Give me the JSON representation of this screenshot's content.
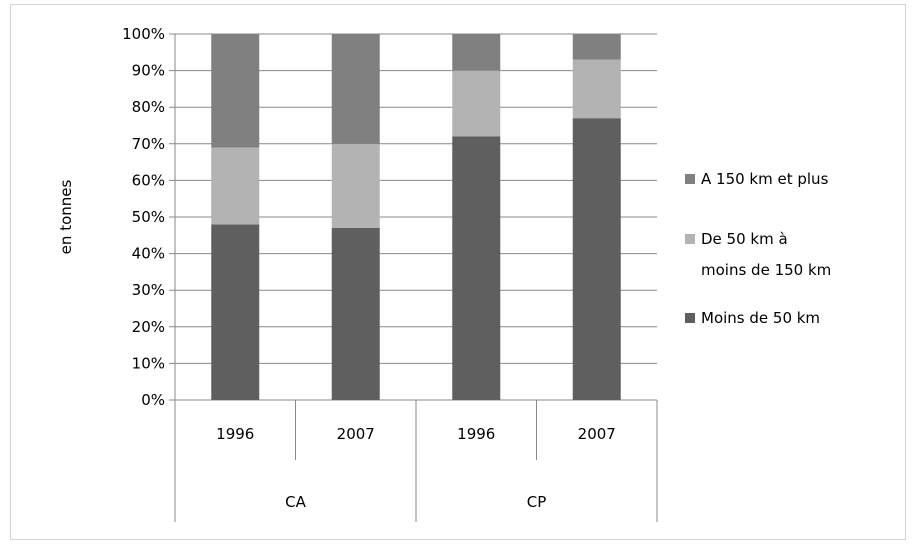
{
  "chart_data": {
    "type": "bar",
    "stacked": true,
    "title": "",
    "ylabel": "en tonnes",
    "xlabel": "",
    "ylim": [
      0,
      100
    ],
    "y_tick_labels": [
      "0%",
      "10%",
      "20%",
      "30%",
      "40%",
      "50%",
      "60%",
      "70%",
      "80%",
      "90%",
      "100%"
    ],
    "categories": [
      "1996",
      "2007",
      "1996",
      "2007"
    ],
    "groups": [
      {
        "label": "CA",
        "categories": [
          "1996",
          "2007"
        ]
      },
      {
        "label": "CP",
        "categories": [
          "1996",
          "2007"
        ]
      }
    ],
    "series": [
      {
        "name": "Moins de 50 km",
        "color": "#5f5f5f",
        "values": [
          48,
          47,
          72,
          77
        ]
      },
      {
        "name": "De 50 km à moins de 150 km",
        "color": "#b3b3b3",
        "values": [
          21,
          23,
          18,
          16
        ]
      },
      {
        "name": "A 150 km et plus",
        "color": "#808080",
        "values": [
          31,
          30,
          10,
          7
        ]
      }
    ],
    "legend": {
      "position": "right",
      "entries": [
        {
          "label_lines": [
            "A 150 km et plus"
          ],
          "color": "#808080"
        },
        {
          "label_lines": [
            "De 50 km à",
            "moins de 150 km"
          ],
          "color": "#b3b3b3"
        },
        {
          "label_lines": [
            "Moins de 50 km"
          ],
          "color": "#5f5f5f"
        }
      ]
    },
    "grid": true,
    "gridline_color": "#888888"
  }
}
